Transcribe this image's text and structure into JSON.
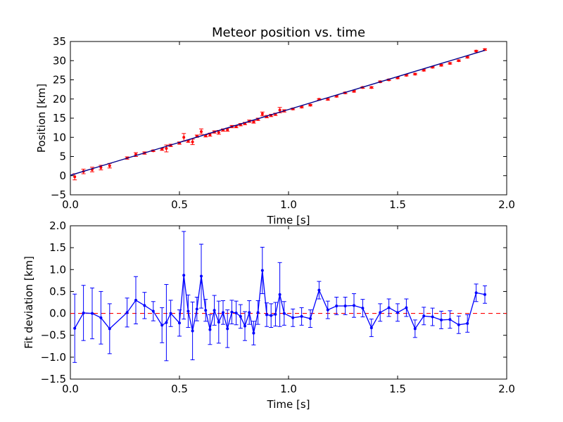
{
  "colors": {
    "data_points": "#ff0000",
    "fit_line": "#00008b",
    "deviation": "#0000ff",
    "zero_line": "#ff0000",
    "axes": "#000000",
    "background": "#ffffff"
  },
  "chart_data": [
    {
      "type": "scatter",
      "title": "Meteor position vs. time",
      "xlabel": "Time [s]",
      "ylabel": "Position [km]",
      "xlim": [
        0.0,
        2.0
      ],
      "ylim": [
        -5,
        35
      ],
      "xticks": [
        "0.0",
        "0.5",
        "1.0",
        "1.5",
        "2.0"
      ],
      "yticks": [
        "−5",
        "0",
        "5",
        "10",
        "15",
        "20",
        "25",
        "30",
        "35"
      ],
      "grid": false,
      "series": [
        {
          "kind": "errorbar-points",
          "color": "#ff0000",
          "x": [
            0.02,
            0.06,
            0.1,
            0.14,
            0.18,
            0.26,
            0.3,
            0.34,
            0.38,
            0.42,
            0.44,
            0.46,
            0.5,
            0.52,
            0.54,
            0.56,
            0.58,
            0.6,
            0.62,
            0.64,
            0.66,
            0.68,
            0.7,
            0.72,
            0.74,
            0.76,
            0.78,
            0.8,
            0.82,
            0.84,
            0.86,
            0.88,
            0.9,
            0.92,
            0.94,
            0.96,
            0.98,
            1.02,
            1.06,
            1.1,
            1.14,
            1.18,
            1.22,
            1.26,
            1.3,
            1.34,
            1.38,
            1.42,
            1.46,
            1.5,
            1.54,
            1.58,
            1.62,
            1.66,
            1.7,
            1.74,
            1.78,
            1.82,
            1.86,
            1.9
          ],
          "y": [
            -0.3,
            1.1,
            1.6,
            2.1,
            2.6,
            4.6,
            5.5,
            5.9,
            6.5,
            6.9,
            7.1,
            7.9,
            8.5,
            10.0,
            9.0,
            8.8,
            10.3,
            11.5,
            10.4,
            10.7,
            11.4,
            11.3,
            11.9,
            12.0,
            12.8,
            12.8,
            13.3,
            13.6,
            14.2,
            14.0,
            14.7,
            16.1,
            15.4,
            15.7,
            16.0,
            17.1,
            16.9,
            17.4,
            17.9,
            18.4,
            19.9,
            19.9,
            20.7,
            21.6,
            22.0,
            23.0,
            23.0,
            24.5,
            25.0,
            25.5,
            26.2,
            26.5,
            27.5,
            28.3,
            28.8,
            29.3,
            30.0,
            30.9,
            32.5,
            32.9
          ],
          "err": [
            0.8,
            0.6,
            0.6,
            0.6,
            0.6,
            0.3,
            0.5,
            0.3,
            0.2,
            0.3,
            0.9,
            0.3,
            0.3,
            1.0,
            0.3,
            0.7,
            0.3,
            0.7,
            0.3,
            0.4,
            0.3,
            0.5,
            0.3,
            0.4,
            0.3,
            0.3,
            0.3,
            0.3,
            0.3,
            0.3,
            0.3,
            0.5,
            0.3,
            0.3,
            0.3,
            0.7,
            0.3,
            0.2,
            0.2,
            0.2,
            0.2,
            0.2,
            0.2,
            0.2,
            0.2,
            0.2,
            0.2,
            0.2,
            0.2,
            0.2,
            0.2,
            0.2,
            0.2,
            0.2,
            0.2,
            0.2,
            0.2,
            0.2,
            0.2,
            0.2
          ]
        },
        {
          "kind": "fit-line",
          "color": "#00008b",
          "x": [
            0.0,
            1.9
          ],
          "y": [
            0.1,
            32.7
          ]
        }
      ]
    },
    {
      "type": "line",
      "title": "",
      "xlabel": "Time [s]",
      "ylabel": "Fit deviation [km]",
      "xlim": [
        0.0,
        2.0
      ],
      "ylim": [
        -1.5,
        2.0
      ],
      "xticks": [
        "0.0",
        "0.5",
        "1.0",
        "1.5",
        "2.0"
      ],
      "yticks": [
        "−1.5",
        "−1.0",
        "−0.5",
        "0.0",
        "0.5",
        "1.0",
        "1.5",
        "2.0"
      ],
      "grid": false,
      "reference_line": {
        "y": 0,
        "style": "dashed",
        "color": "#ff0000"
      },
      "series": [
        {
          "kind": "errorbar-line",
          "color": "#0000ff",
          "x": [
            0.02,
            0.06,
            0.1,
            0.14,
            0.18,
            0.26,
            0.3,
            0.34,
            0.38,
            0.42,
            0.44,
            0.46,
            0.5,
            0.52,
            0.54,
            0.56,
            0.58,
            0.6,
            0.62,
            0.64,
            0.66,
            0.68,
            0.7,
            0.72,
            0.74,
            0.76,
            0.78,
            0.8,
            0.82,
            0.84,
            0.86,
            0.88,
            0.9,
            0.92,
            0.94,
            0.96,
            0.98,
            1.02,
            1.06,
            1.1,
            1.14,
            1.18,
            1.22,
            1.26,
            1.3,
            1.34,
            1.38,
            1.42,
            1.46,
            1.5,
            1.54,
            1.58,
            1.62,
            1.66,
            1.7,
            1.74,
            1.78,
            1.82,
            1.86,
            1.9
          ],
          "y": [
            -0.34,
            0.01,
            0.0,
            -0.1,
            -0.35,
            0.02,
            0.3,
            0.18,
            0.05,
            -0.27,
            -0.21,
            0.0,
            -0.22,
            0.87,
            0.05,
            -0.4,
            0.1,
            0.85,
            0.07,
            -0.37,
            0.07,
            -0.2,
            0.02,
            -0.35,
            0.03,
            0.01,
            -0.07,
            -0.29,
            0.02,
            -0.45,
            0.02,
            0.98,
            -0.03,
            -0.05,
            -0.02,
            0.43,
            0.0,
            -0.1,
            -0.07,
            -0.12,
            0.53,
            0.08,
            0.17,
            0.17,
            0.18,
            0.12,
            -0.33,
            0.02,
            0.13,
            0.02,
            0.13,
            -0.35,
            -0.06,
            -0.08,
            -0.15,
            -0.14,
            -0.26,
            -0.23,
            0.47,
            0.43
          ],
          "err": [
            0.78,
            0.63,
            0.58,
            0.6,
            0.57,
            0.33,
            0.54,
            0.3,
            0.22,
            0.4,
            0.87,
            0.3,
            0.3,
            1.0,
            0.37,
            0.66,
            0.27,
            0.73,
            0.25,
            0.34,
            0.34,
            0.48,
            0.27,
            0.43,
            0.27,
            0.27,
            0.27,
            0.33,
            0.27,
            0.27,
            0.27,
            0.53,
            0.27,
            0.27,
            0.27,
            0.73,
            0.27,
            0.2,
            0.2,
            0.2,
            0.2,
            0.2,
            0.2,
            0.2,
            0.27,
            0.2,
            0.2,
            0.2,
            0.2,
            0.2,
            0.2,
            0.2,
            0.2,
            0.2,
            0.2,
            0.2,
            0.2,
            0.2,
            0.2,
            0.2
          ]
        }
      ]
    }
  ]
}
